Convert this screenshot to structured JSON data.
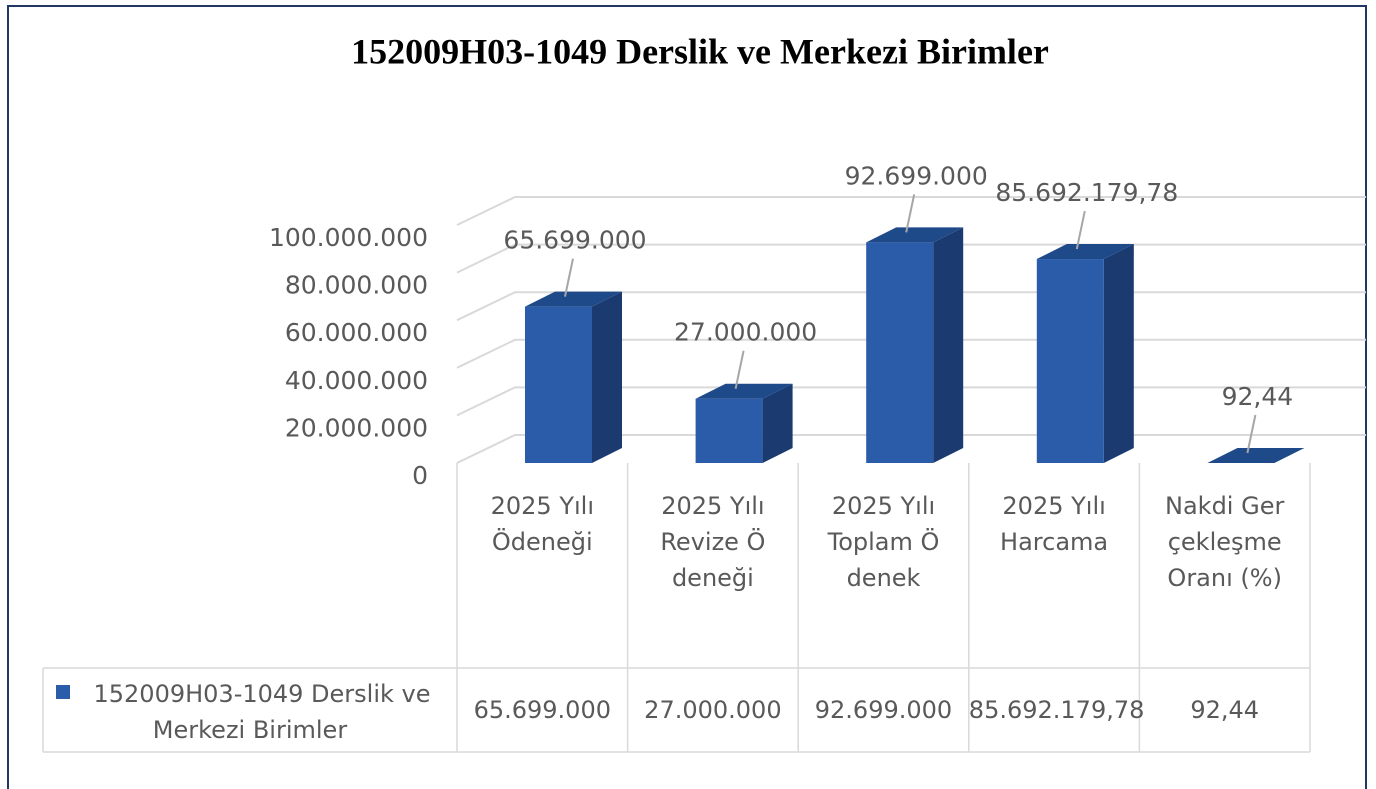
{
  "chart_data": {
    "type": "bar3d",
    "title": "152009H03-1049 Derslik ve Merkezi Birimler",
    "categories": [
      "2025 Yılı Ödeneği",
      "2025 Yılı Revize Ödeneği",
      "2025 Yılı Toplam Ödenek",
      "2025 Yılı Harcama",
      "Nakdi Gerçekleşme Oranı (%)"
    ],
    "series": [
      {
        "name": "152009H03-1049 Derslik ve Merkezi Birimler",
        "color": "#2a5caa",
        "values": [
          65699000,
          27000000,
          92699000,
          85692179.78,
          92.44
        ],
        "value_labels": [
          "65.699.000",
          "27.000.000",
          "92.699.000",
          "85.692.179,78",
          "92,44"
        ]
      }
    ],
    "ylim": [
      0,
      100000000
    ],
    "yticks": [
      0,
      {
        "value": 20000000,
        "label": "20.000.000"
      },
      {
        "value": 40000000,
        "label": "40.000.000"
      },
      {
        "value": 60000000,
        "label": "60.000.000"
      },
      {
        "value": 80000000,
        "label": "80.000.000"
      },
      {
        "value": 100000000,
        "label": "100.000.000"
      }
    ],
    "grid": true,
    "legend": "table"
  }
}
